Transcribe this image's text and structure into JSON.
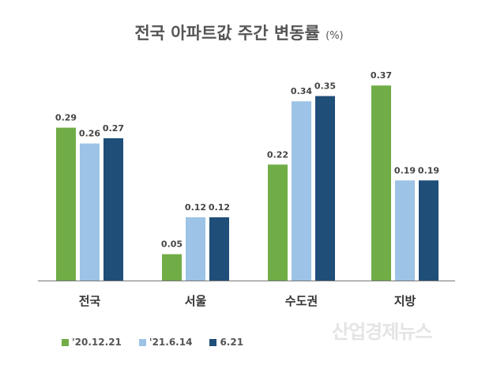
{
  "chart_data": {
    "type": "bar",
    "title": "전국 아파트값 주간 변동률",
    "unit": "(%)",
    "categories": [
      "전국",
      "서울",
      "수도권",
      "지방"
    ],
    "series": [
      {
        "name": "'20.12.21",
        "color": "#70AD47",
        "values": [
          0.29,
          0.05,
          0.22,
          0.37
        ]
      },
      {
        "name": "'21.6.14",
        "color": "#9DC3E6",
        "values": [
          0.26,
          0.12,
          0.34,
          0.19
        ]
      },
      {
        "name": "6.21",
        "color": "#1F4E79",
        "values": [
          0.27,
          0.12,
          0.35,
          0.19
        ]
      }
    ],
    "ylim": [
      0,
      0.4
    ],
    "grid": false,
    "legend": "bottom"
  },
  "watermark": "산업경제뉴스"
}
